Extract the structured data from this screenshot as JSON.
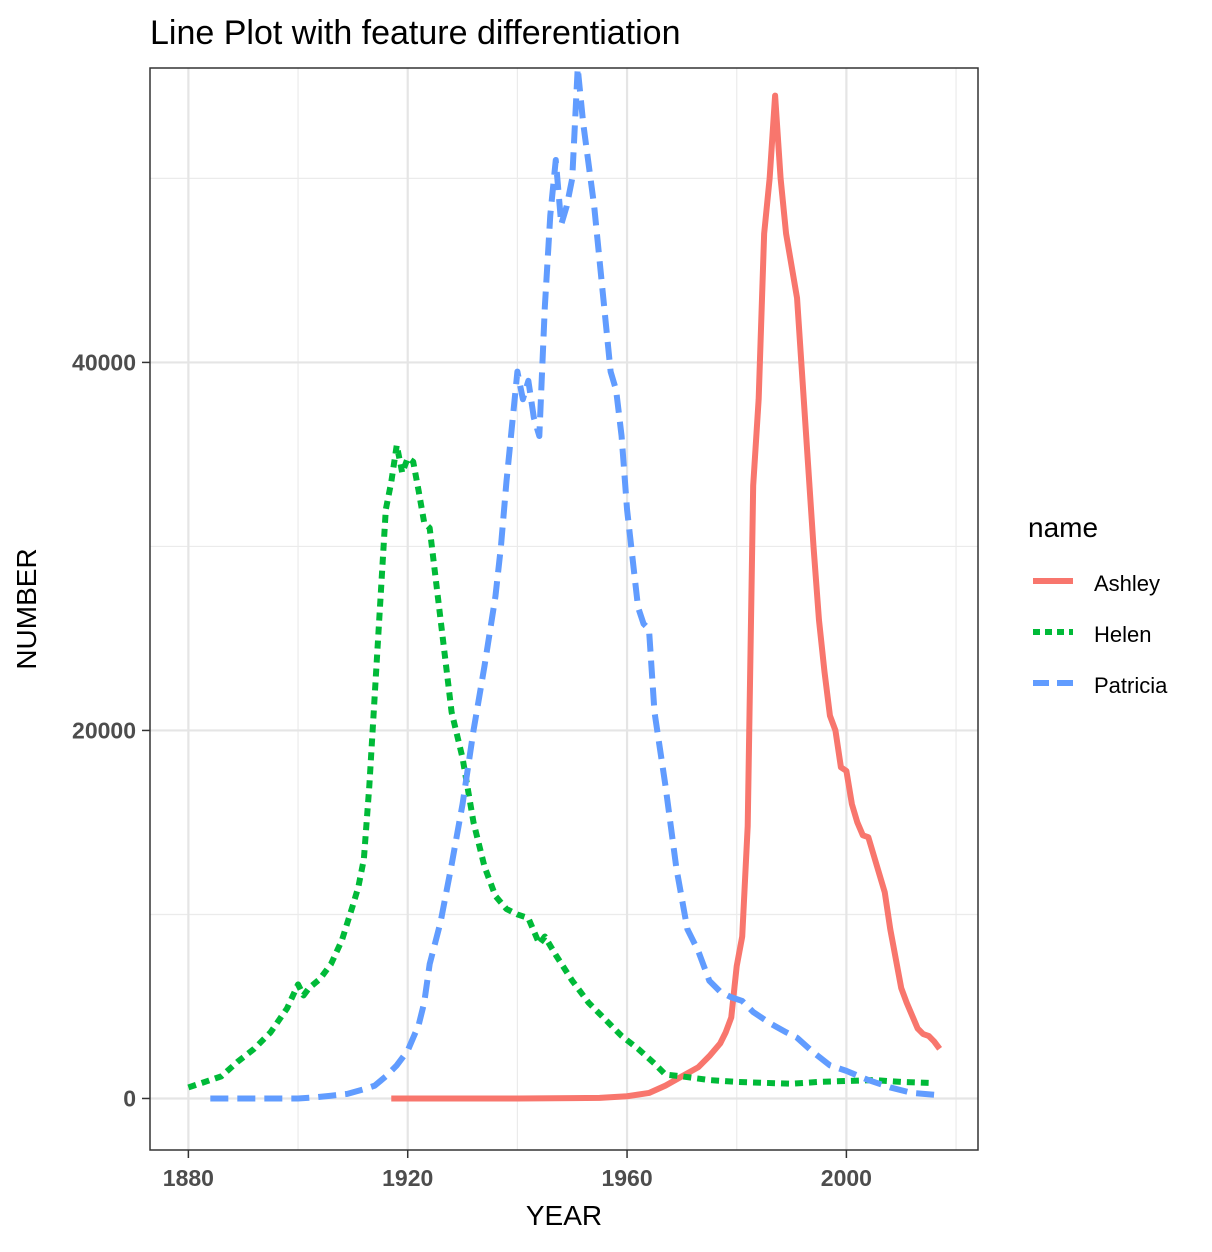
{
  "chart_data": {
    "type": "line",
    "title": "Line Plot with feature differentiation",
    "xlabel": "YEAR",
    "ylabel": "NUMBER",
    "xlim": [
      1873,
      2024
    ],
    "ylim": [
      -2800,
      56000
    ],
    "x_ticks": [
      1880,
      1920,
      1960,
      2000
    ],
    "x_tick_labels": [
      "1880",
      "1920",
      "1960",
      "2000"
    ],
    "x_minor_ticks": [
      1900,
      1940,
      1980,
      2020
    ],
    "y_ticks": [
      0,
      20000,
      40000
    ],
    "y_tick_labels": [
      "0",
      "20000",
      "40000"
    ],
    "y_minor_ticks": [
      10000,
      30000,
      50000
    ],
    "grid": true,
    "legend": {
      "title": "name",
      "position": "right"
    },
    "series": [
      {
        "name": "Ashley",
        "color": "#F8766D",
        "dash": "solid",
        "points": [
          [
            1917,
            0
          ],
          [
            1930,
            0
          ],
          [
            1940,
            0
          ],
          [
            1950,
            20
          ],
          [
            1955,
            30
          ],
          [
            1960,
            120
          ],
          [
            1964,
            300
          ],
          [
            1967,
            700
          ],
          [
            1970,
            1200
          ],
          [
            1973,
            1700
          ],
          [
            1975,
            2300
          ],
          [
            1977,
            3000
          ],
          [
            1978,
            3600
          ],
          [
            1979,
            4400
          ],
          [
            1980,
            7200
          ],
          [
            1981,
            8800
          ],
          [
            1982,
            14800
          ],
          [
            1983,
            33300
          ],
          [
            1984,
            38000
          ],
          [
            1985,
            47000
          ],
          [
            1986,
            50000
          ],
          [
            1987,
            54500
          ],
          [
            1988,
            50000
          ],
          [
            1989,
            47000
          ],
          [
            1991,
            43500
          ],
          [
            1993,
            34500
          ],
          [
            1994,
            30000
          ],
          [
            1995,
            26000
          ],
          [
            1996,
            23200
          ],
          [
            1997,
            20800
          ],
          [
            1998,
            20000
          ],
          [
            1999,
            18000
          ],
          [
            2000,
            17800
          ],
          [
            2001,
            16000
          ],
          [
            2002,
            15000
          ],
          [
            2003,
            14300
          ],
          [
            2004,
            14200
          ],
          [
            2005,
            13200
          ],
          [
            2007,
            11200
          ],
          [
            2008,
            9200
          ],
          [
            2010,
            6000
          ],
          [
            2011,
            5200
          ],
          [
            2012,
            4500
          ],
          [
            2013,
            3800
          ],
          [
            2014,
            3500
          ],
          [
            2015,
            3400
          ],
          [
            2016,
            3100
          ],
          [
            2017,
            2700
          ]
        ]
      },
      {
        "name": "Helen",
        "color": "#00BA38",
        "dash": "dotted",
        "points": [
          [
            1880,
            600
          ],
          [
            1883,
            900
          ],
          [
            1886,
            1200
          ],
          [
            1889,
            2000
          ],
          [
            1892,
            2700
          ],
          [
            1895,
            3600
          ],
          [
            1898,
            4900
          ],
          [
            1900,
            6200
          ],
          [
            1901,
            5600
          ],
          [
            1902,
            6000
          ],
          [
            1904,
            6500
          ],
          [
            1906,
            7300
          ],
          [
            1908,
            8600
          ],
          [
            1910,
            10500
          ],
          [
            1911,
            11500
          ],
          [
            1912,
            13000
          ],
          [
            1913,
            17000
          ],
          [
            1914,
            22000
          ],
          [
            1915,
            27000
          ],
          [
            1916,
            32000
          ],
          [
            1917,
            33500
          ],
          [
            1918,
            35500
          ],
          [
            1919,
            34000
          ],
          [
            1920,
            34800
          ],
          [
            1921,
            34600
          ],
          [
            1922,
            33000
          ],
          [
            1923,
            31300
          ],
          [
            1924,
            31000
          ],
          [
            1926,
            26000
          ],
          [
            1928,
            21000
          ],
          [
            1930,
            18500
          ],
          [
            1932,
            15000
          ],
          [
            1934,
            12600
          ],
          [
            1936,
            11000
          ],
          [
            1938,
            10300
          ],
          [
            1940,
            10000
          ],
          [
            1942,
            9800
          ],
          [
            1944,
            8400
          ],
          [
            1945,
            8800
          ],
          [
            1947,
            7800
          ],
          [
            1950,
            6400
          ],
          [
            1953,
            5200
          ],
          [
            1956,
            4300
          ],
          [
            1959,
            3400
          ],
          [
            1962,
            2700
          ],
          [
            1965,
            1900
          ],
          [
            1967,
            1300
          ],
          [
            1970,
            1200
          ],
          [
            1975,
            1000
          ],
          [
            1980,
            900
          ],
          [
            1985,
            850
          ],
          [
            1990,
            800
          ],
          [
            1995,
            900
          ],
          [
            2000,
            950
          ],
          [
            2005,
            1000
          ],
          [
            2010,
            900
          ],
          [
            2015,
            850
          ]
        ]
      },
      {
        "name": "Patricia",
        "color": "#619CFF",
        "dash": "dashed",
        "points": [
          [
            1884,
            0
          ],
          [
            1890,
            0
          ],
          [
            1895,
            0
          ],
          [
            1900,
            0
          ],
          [
            1903,
            60
          ],
          [
            1906,
            150
          ],
          [
            1909,
            250
          ],
          [
            1912,
            500
          ],
          [
            1914,
            700
          ],
          [
            1916,
            1200
          ],
          [
            1918,
            1800
          ],
          [
            1920,
            2600
          ],
          [
            1922,
            4000
          ],
          [
            1923,
            5200
          ],
          [
            1924,
            7300
          ],
          [
            1926,
            9600
          ],
          [
            1928,
            12700
          ],
          [
            1930,
            16000
          ],
          [
            1932,
            20000
          ],
          [
            1934,
            23500
          ],
          [
            1936,
            27300
          ],
          [
            1937,
            30000
          ],
          [
            1938,
            33500
          ],
          [
            1940,
            39500
          ],
          [
            1941,
            38000
          ],
          [
            1942,
            39000
          ],
          [
            1943,
            37000
          ],
          [
            1944,
            36000
          ],
          [
            1945,
            43000
          ],
          [
            1946,
            48000
          ],
          [
            1947,
            51000
          ],
          [
            1948,
            47500
          ],
          [
            1949,
            48500
          ],
          [
            1950,
            50000
          ],
          [
            1951,
            56000
          ],
          [
            1952,
            53000
          ],
          [
            1954,
            48500
          ],
          [
            1955,
            45500
          ],
          [
            1957,
            39500
          ],
          [
            1958,
            38500
          ],
          [
            1959,
            36000
          ],
          [
            1960,
            32000
          ],
          [
            1962,
            26700
          ],
          [
            1963,
            25800
          ],
          [
            1964,
            25500
          ],
          [
            1965,
            21000
          ],
          [
            1967,
            17000
          ],
          [
            1969,
            12500
          ],
          [
            1971,
            9200
          ],
          [
            1973,
            8000
          ],
          [
            1975,
            6400
          ],
          [
            1977,
            5800
          ],
          [
            1979,
            5500
          ],
          [
            1981,
            5300
          ],
          [
            1983,
            4700
          ],
          [
            1986,
            4100
          ],
          [
            1989,
            3600
          ],
          [
            1991,
            3300
          ],
          [
            1994,
            2500
          ],
          [
            1997,
            1800
          ],
          [
            2000,
            1500
          ],
          [
            2004,
            1000
          ],
          [
            2008,
            600
          ],
          [
            2012,
            300
          ],
          [
            2016,
            200
          ]
        ]
      }
    ]
  }
}
